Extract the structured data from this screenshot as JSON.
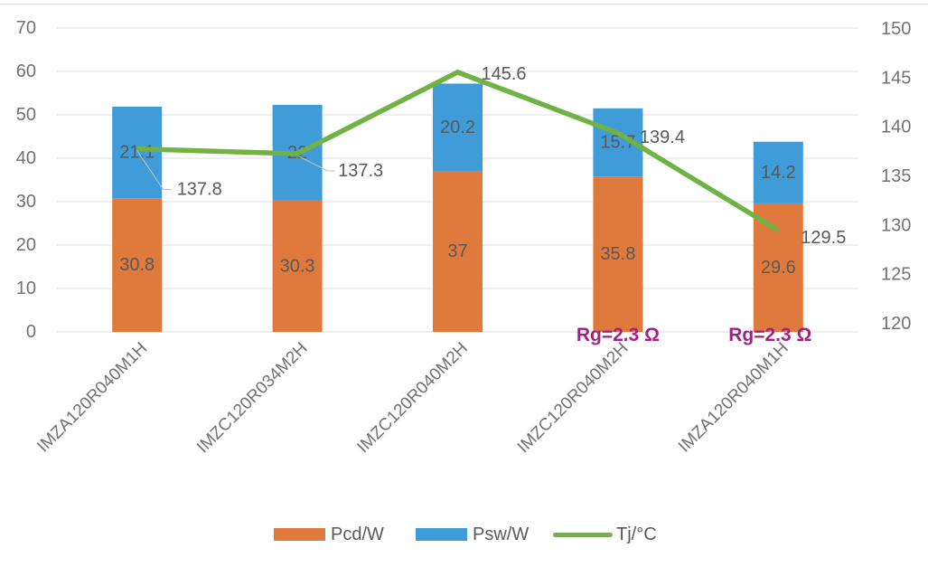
{
  "chart_data": {
    "type": "bar",
    "subtype": "stacked-bars-with-line-secondary-axis",
    "categories": [
      "IMZA120R040M1H",
      "IMZC120R034M2H",
      "IMZC120R040M2H",
      "IMZC120R040M2H",
      "IMZA120R040M1H"
    ],
    "series": [
      {
        "name": "Pcd/W",
        "type": "bar",
        "stack": true,
        "color": "#E0793C",
        "values": [
          30.8,
          30.3,
          37,
          35.8,
          29.6
        ],
        "labels": [
          "30.8",
          "30.3",
          "37",
          "35.8",
          "29.6"
        ]
      },
      {
        "name": "Psw/W",
        "type": "bar",
        "stack": true,
        "color": "#3F9CD9",
        "values": [
          21.1,
          22,
          20.2,
          15.7,
          14.2
        ],
        "labels": [
          "21.1",
          "22",
          "20.2",
          "15.7",
          "14.2"
        ]
      },
      {
        "name": "Tj/°C",
        "type": "line",
        "axis": "right",
        "color": "#70B244",
        "values": [
          137.8,
          137.3,
          145.6,
          139.4,
          129.5
        ],
        "labels": [
          "137.8",
          "137.3",
          "145.6",
          "139.4",
          "129.5"
        ]
      }
    ],
    "left_axis": {
      "min": 0,
      "max": 70,
      "step": 10,
      "tick_labels": [
        "70",
        "60",
        "50",
        "40",
        "30",
        "20",
        "10",
        "0"
      ]
    },
    "right_axis": {
      "min": 120,
      "max": 150,
      "step": 5,
      "tick_labels": [
        "150",
        "145",
        "140",
        "135",
        "130",
        "125",
        "120"
      ]
    },
    "annotations": [
      {
        "text": "Rg=2.3 Ω",
        "category_index": 3,
        "color": "#9E2384"
      },
      {
        "text": "Rg=2.3 Ω",
        "category_index": 4,
        "color": "#9E2384"
      }
    ],
    "legend": {
      "position": "bottom",
      "items": [
        "Pcd/W",
        "Psw/W",
        "Tj/°C"
      ]
    },
    "grid": true,
    "label_color": "#595959",
    "axis_label_color": "#707276",
    "gridline_color": "#DCDCDC",
    "leader_line_color": "#BFBFBF"
  }
}
